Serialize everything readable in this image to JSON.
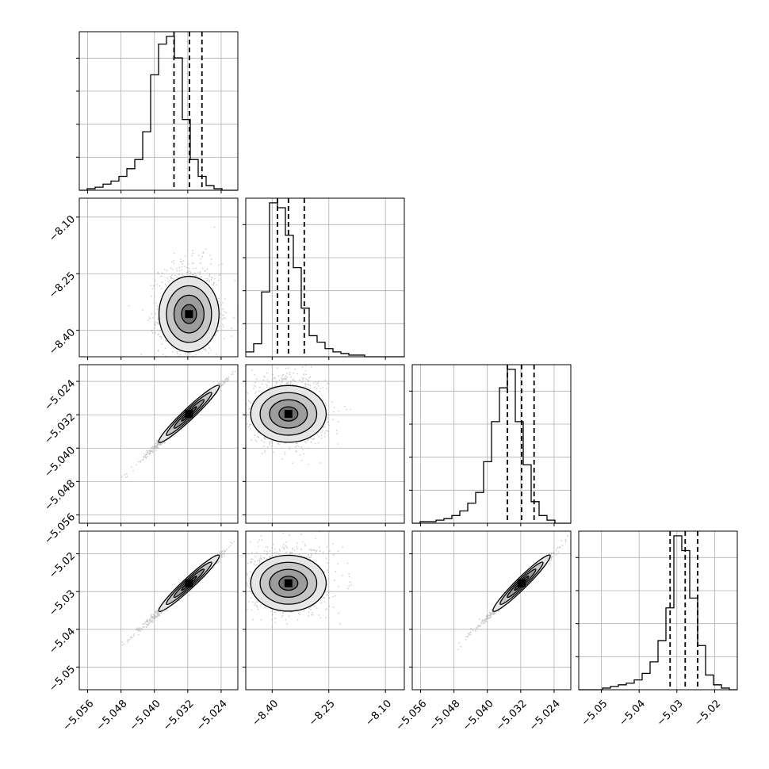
{
  "chart_data": {
    "type": "corner",
    "title": "",
    "n_params": 4,
    "param_labels": [
      "",
      "",
      "",
      ""
    ],
    "ranges": [
      [
        -5.058,
        -5.02
      ],
      [
        -8.47,
        -8.05
      ],
      [
        -5.058,
        -5.02
      ],
      [
        -5.056,
        -5.014
      ]
    ],
    "tick_values": [
      [
        -5.056,
        -5.048,
        -5.04,
        -5.032,
        -5.024
      ],
      [
        -8.4,
        -8.25,
        -8.1
      ],
      [
        -5.056,
        -5.048,
        -5.04,
        -5.032,
        -5.024
      ],
      [
        -5.05,
        -5.04,
        -5.03,
        -5.02
      ]
    ],
    "tick_labels": [
      [
        "−5.056",
        "−5.048",
        "−5.040",
        "−5.032",
        "−5.024"
      ],
      [
        "−8.40",
        "−8.25",
        "−8.10"
      ],
      [
        "−5.056",
        "−5.048",
        "−5.040",
        "−5.032",
        "−5.024"
      ],
      [
        "−5.05",
        "−5.04",
        "−5.03",
        "−5.02"
      ]
    ],
    "quantiles": [
      0.16,
      0.5,
      0.84
    ],
    "quantile_values": [
      [
        -5.0353,
        -5.0316,
        -5.0286
      ],
      [
        -8.386,
        -8.357,
        -8.315
      ],
      [
        -5.0352,
        -5.0318,
        -5.0288
      ],
      [
        -5.0318,
        -5.0278,
        -5.0245
      ]
    ],
    "marginal_histograms": [
      {
        "param": 0,
        "counts": [
          0,
          1,
          2,
          4,
          6,
          9,
          14,
          20,
          38,
          75,
          95,
          100,
          86,
          46,
          20,
          9,
          3,
          1,
          0,
          0
        ],
        "bin_edges_range": [
          -5.058,
          -5.02
        ]
      },
      {
        "param": 1,
        "counts": [
          3,
          8,
          40,
          95,
          92,
          75,
          55,
          30,
          13,
          9,
          5,
          3,
          2,
          1,
          1,
          0,
          0,
          0,
          0,
          0
        ],
        "bin_edges_range": [
          -8.47,
          -8.05
        ]
      },
      {
        "param": 2,
        "counts": [
          0,
          1,
          1,
          2,
          3,
          5,
          8,
          13,
          20,
          40,
          66,
          88,
          100,
          66,
          38,
          14,
          5,
          2,
          0,
          0
        ],
        "bin_edges_range": [
          -5.058,
          -5.02
        ]
      },
      {
        "param": 3,
        "counts": [
          0,
          0,
          0,
          1,
          2,
          3,
          4,
          6,
          10,
          17,
          30,
          50,
          94,
          85,
          56,
          27,
          9,
          3,
          1,
          0
        ],
        "bin_edges_range": [
          -5.056,
          -5.014
        ]
      }
    ],
    "joint_panels": [
      {
        "x_param": 0,
        "y_param": 1,
        "x_center": -5.0317,
        "y_center": -8.357,
        "x_sd": 0.0036,
        "y_sd": 0.05,
        "correlation": 0.0
      },
      {
        "x_param": 0,
        "y_param": 2,
        "x_center": -5.0317,
        "y_center": -5.0318,
        "x_sd": 0.0036,
        "y_sd": 0.0034,
        "correlation": 0.99
      },
      {
        "x_param": 1,
        "y_param": 2,
        "x_center": -8.357,
        "y_center": -5.0318,
        "x_sd": 0.05,
        "y_sd": 0.0034,
        "correlation": 0.0
      },
      {
        "x_param": 0,
        "y_param": 3,
        "x_center": -5.0317,
        "y_center": -5.0278,
        "x_sd": 0.0036,
        "y_sd": 0.0037,
        "correlation": 0.99
      },
      {
        "x_param": 1,
        "y_param": 3,
        "x_center": -8.357,
        "y_center": -5.0278,
        "x_sd": 0.05,
        "y_sd": 0.0037,
        "correlation": 0.0
      },
      {
        "x_param": 2,
        "y_param": 3,
        "x_center": -5.0318,
        "y_center": -5.0278,
        "x_sd": 0.0034,
        "y_sd": 0.0037,
        "correlation": 0.99
      }
    ],
    "contour_levels_sigma": [
      0.5,
      1.0,
      1.5,
      2.0
    ],
    "grid": true,
    "legend": "none",
    "colors": {
      "line": "#000000",
      "scatter": "#9a9a9a",
      "grid": "#b0b0b0"
    }
  }
}
